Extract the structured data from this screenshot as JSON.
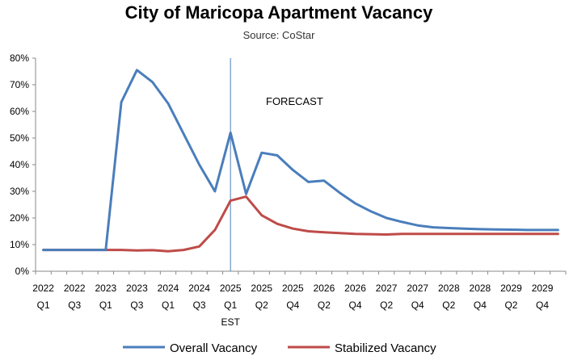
{
  "chart_data": {
    "type": "line",
    "title": "City of Maricopa Apartment Vacancy",
    "subtitle": "Source: CoStar",
    "xlabel": "",
    "ylabel": "",
    "ylim": [
      0,
      0.8
    ],
    "yticks": [
      "0%",
      "10%",
      "20%",
      "30%",
      "40%",
      "50%",
      "60%",
      "70%",
      "80%"
    ],
    "grid": false,
    "legend_position": "bottom",
    "x_labels": [
      {
        "index": 0,
        "year": "2022",
        "q": "Q1"
      },
      {
        "index": 2,
        "year": "2022",
        "q": "Q3"
      },
      {
        "index": 4,
        "year": "2023",
        "q": "Q1"
      },
      {
        "index": 6,
        "year": "2023",
        "q": "Q3"
      },
      {
        "index": 8,
        "year": "2024",
        "q": "Q1"
      },
      {
        "index": 10,
        "year": "2024",
        "q": "Q3"
      },
      {
        "index": 12,
        "year": "2025",
        "q": "Q1",
        "extra": "EST"
      },
      {
        "index": 14,
        "year": "2025",
        "q": "Q2"
      },
      {
        "index": 16,
        "year": "2025",
        "q": "Q4"
      },
      {
        "index": 18,
        "year": "2026",
        "q": "Q2"
      },
      {
        "index": 20,
        "year": "2026",
        "q": "Q4"
      },
      {
        "index": 22,
        "year": "2027",
        "q": "Q2"
      },
      {
        "index": 24,
        "year": "2027",
        "q": "Q4"
      },
      {
        "index": 26,
        "year": "2028",
        "q": "Q2"
      },
      {
        "index": 28,
        "year": "2028",
        "q": "Q4"
      },
      {
        "index": 30,
        "year": "2029",
        "q": "Q2"
      },
      {
        "index": 32,
        "year": "2029",
        "q": "Q4"
      }
    ],
    "point_count": 34,
    "forecast_index": 12,
    "annotation": "FORECAST",
    "series": [
      {
        "name": "Overall Vacancy",
        "color": "#4a7ebb",
        "values": [
          0.08,
          0.08,
          0.08,
          0.08,
          0.08,
          0.635,
          0.755,
          0.71,
          0.63,
          0.515,
          0.4,
          0.3,
          0.52,
          0.29,
          0.445,
          0.435,
          0.38,
          0.335,
          0.34,
          0.295,
          0.255,
          0.225,
          0.2,
          0.185,
          0.172,
          0.165,
          0.162,
          0.16,
          0.158,
          0.157,
          0.156,
          0.155,
          0.155,
          0.155
        ]
      },
      {
        "name": "Stabilized Vacancy",
        "color": "#be4b48",
        "values": [
          0.08,
          0.08,
          0.08,
          0.08,
          0.08,
          0.08,
          0.078,
          0.079,
          0.075,
          0.08,
          0.093,
          0.155,
          0.265,
          0.28,
          0.21,
          0.178,
          0.16,
          0.15,
          0.146,
          0.143,
          0.14,
          0.139,
          0.138,
          0.14,
          0.14,
          0.14,
          0.14,
          0.14,
          0.14,
          0.14,
          0.14,
          0.14,
          0.14,
          0.14
        ]
      }
    ]
  }
}
